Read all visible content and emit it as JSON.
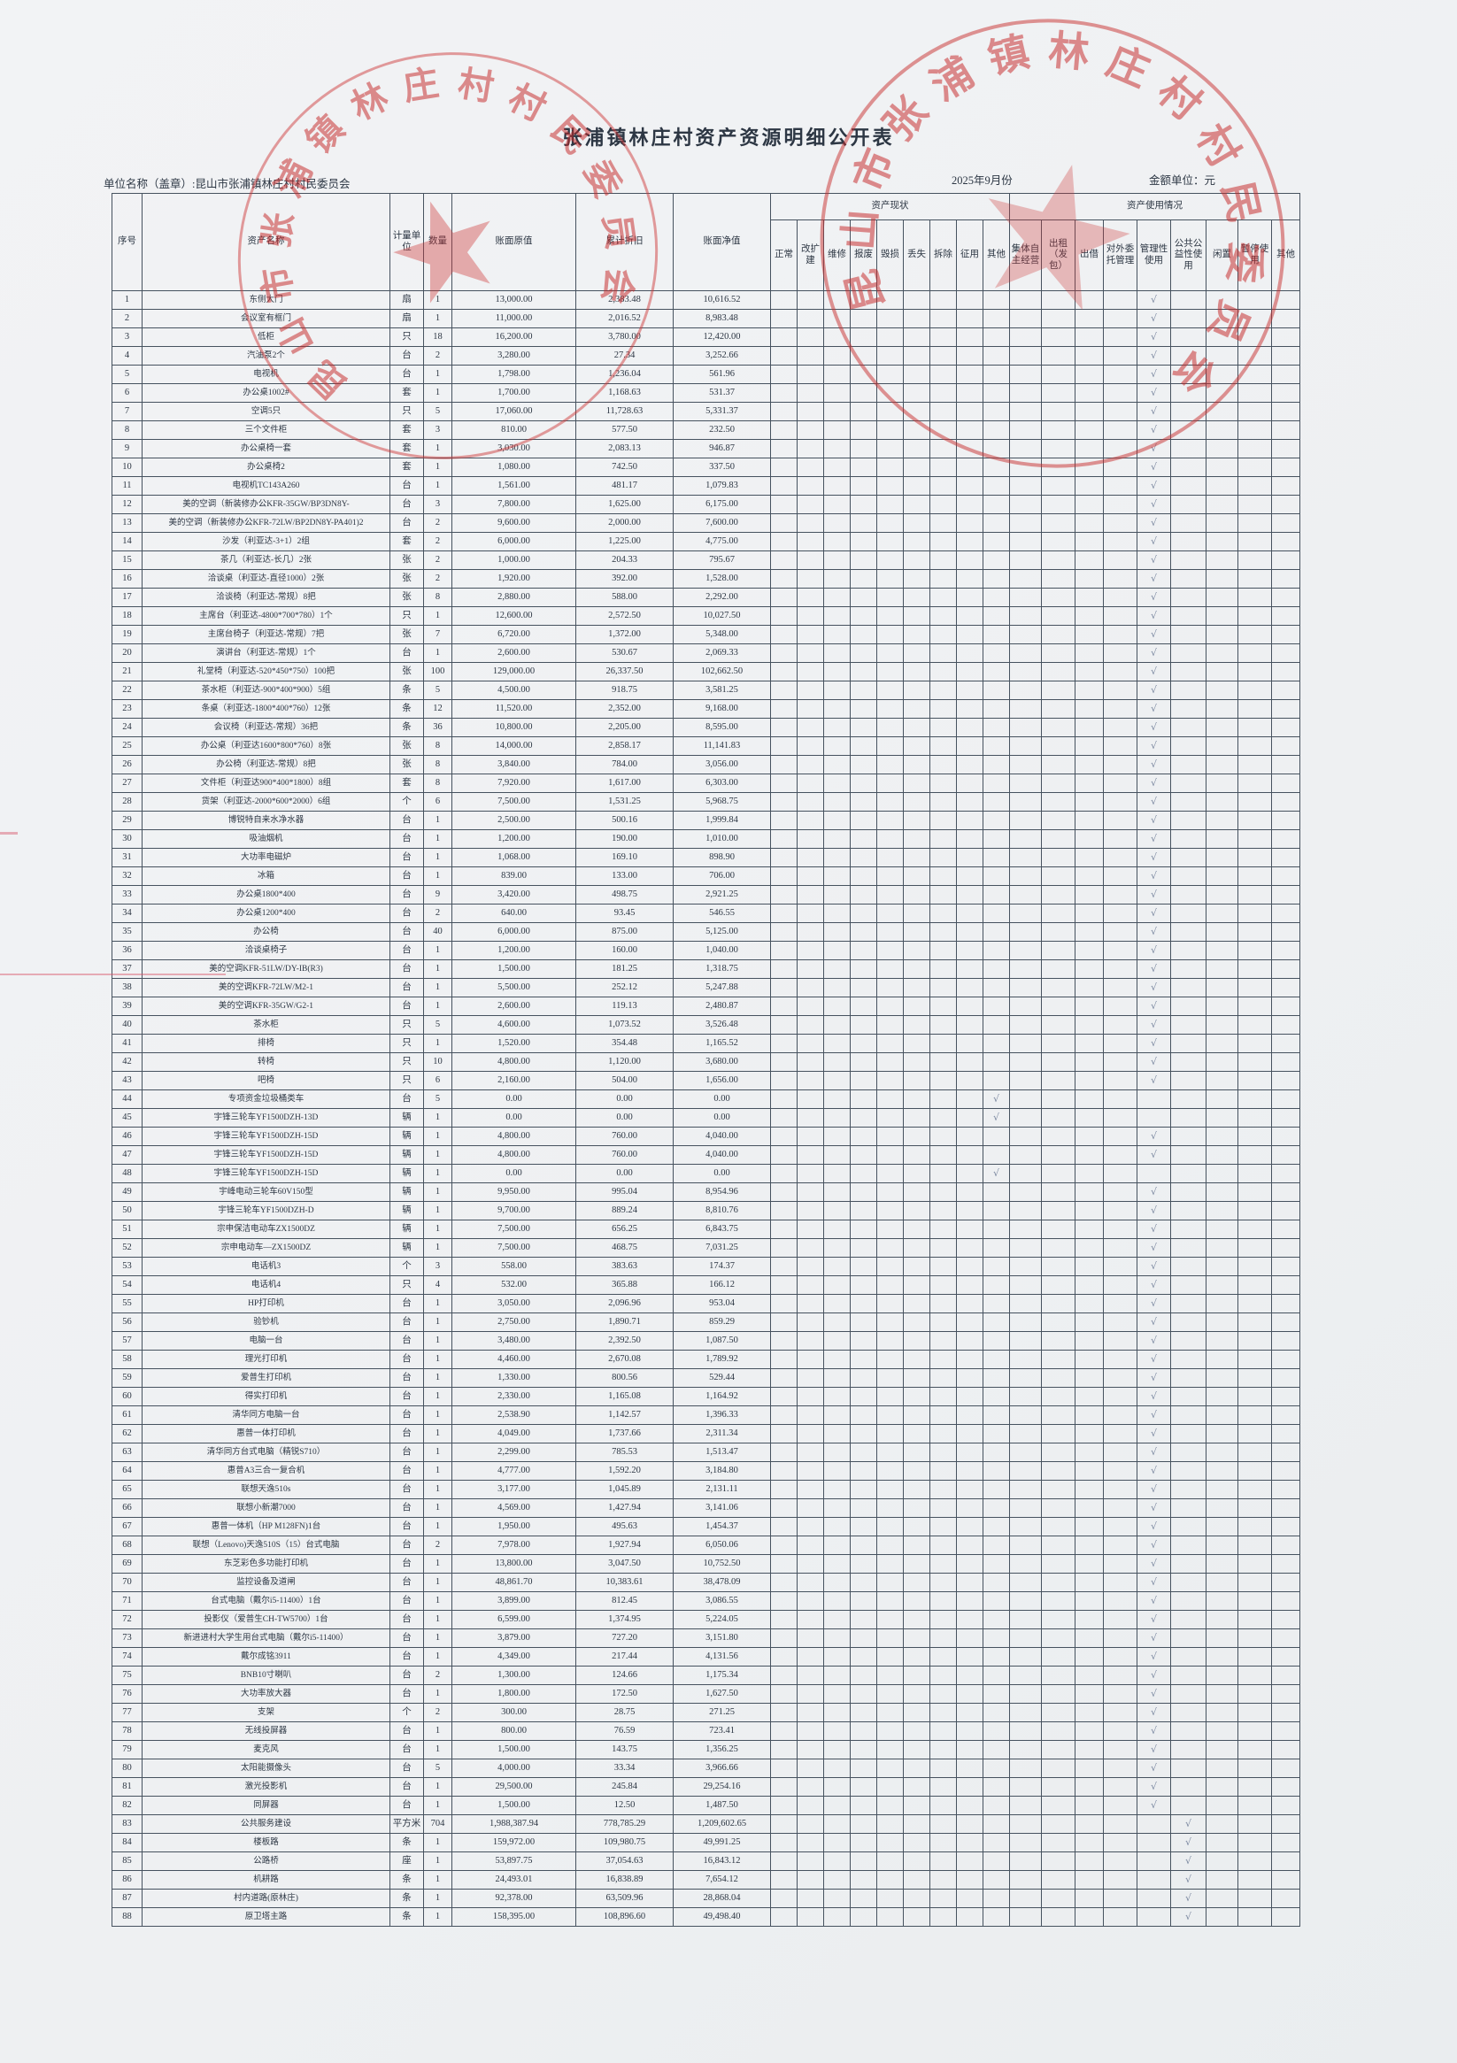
{
  "page": {
    "title": "张浦镇林庄村资产资源明细公开表",
    "unit_label": "单位名称（盖章）:昆山市张浦镇林庄村村民委员会",
    "date": "2025年9月份",
    "amount_unit": "金额单位：元",
    "stamp_text": "昆山市张浦镇林庄村村民委员会",
    "check_mark": "√"
  },
  "table": {
    "headers": {
      "seq": "序号",
      "name": "资产名称",
      "unit": "计量单位",
      "qty": "数量",
      "orig": "账面原值",
      "depr": "累计折旧",
      "net": "账面净值",
      "status_group": "资产现状",
      "usage_group": "资产使用情况",
      "status_cols": [
        "正常",
        "改扩建",
        "维修",
        "报废",
        "毁损",
        "丢失",
        "拆除",
        "征用",
        "其他"
      ],
      "usage_cols": [
        "集体自主经营",
        "出租（发包）",
        "出借",
        "对外委托管理",
        "管理性使用",
        "公共公益性使用",
        "闲置",
        "暂停使用",
        "其他"
      ]
    },
    "rows": [
      [
        1,
        "东侧大门",
        "扇",
        "1",
        "13,000.00",
        "2,383.48",
        "10,616.52",
        "m"
      ],
      [
        2,
        "会议室有框门",
        "扇",
        "1",
        "11,000.00",
        "2,016.52",
        "8,983.48",
        "m"
      ],
      [
        3,
        "低柜",
        "只",
        "18",
        "16,200.00",
        "3,780.00",
        "12,420.00",
        "m"
      ],
      [
        4,
        "汽油泵2个",
        "台",
        "2",
        "3,280.00",
        "27.34",
        "3,252.66",
        "m"
      ],
      [
        5,
        "电视机",
        "台",
        "1",
        "1,798.00",
        "1,236.04",
        "561.96",
        "m"
      ],
      [
        6,
        "办公桌1002#",
        "套",
        "1",
        "1,700.00",
        "1,168.63",
        "531.37",
        "m"
      ],
      [
        7,
        "空调5只",
        "只",
        "5",
        "17,060.00",
        "11,728.63",
        "5,331.37",
        "m"
      ],
      [
        8,
        "三个文件柜",
        "套",
        "3",
        "810.00",
        "577.50",
        "232.50",
        "m"
      ],
      [
        9,
        "办公桌椅一套",
        "套",
        "1",
        "3,030.00",
        "2,083.13",
        "946.87",
        "m"
      ],
      [
        10,
        "办公桌椅2",
        "套",
        "1",
        "1,080.00",
        "742.50",
        "337.50",
        "m"
      ],
      [
        11,
        "电视机TC143A260",
        "台",
        "1",
        "1,561.00",
        "481.17",
        "1,079.83",
        "m"
      ],
      [
        12,
        "美的空调（新装修办公KFR-35GW/BP3DN8Y-",
        "台",
        "3",
        "7,800.00",
        "1,625.00",
        "6,175.00",
        "m"
      ],
      [
        13,
        "美的空调（新装修办公KFR-72LW/BP2DN8Y-PA401)2",
        "台",
        "2",
        "9,600.00",
        "2,000.00",
        "7,600.00",
        "m"
      ],
      [
        14,
        "沙发（利亚达-3+1）2组",
        "套",
        "2",
        "6,000.00",
        "1,225.00",
        "4,775.00",
        "m"
      ],
      [
        15,
        "茶几（利亚达-长几）2张",
        "张",
        "2",
        "1,000.00",
        "204.33",
        "795.67",
        "m"
      ],
      [
        16,
        "洽谈桌（利亚达-直径1000）2张",
        "张",
        "2",
        "1,920.00",
        "392.00",
        "1,528.00",
        "m"
      ],
      [
        17,
        "洽谈椅（利亚达-常规）8把",
        "张",
        "8",
        "2,880.00",
        "588.00",
        "2,292.00",
        "m"
      ],
      [
        18,
        "主席台（利亚达-4800*700*780）1个",
        "只",
        "1",
        "12,600.00",
        "2,572.50",
        "10,027.50",
        "m"
      ],
      [
        19,
        "主席台椅子（利亚达-常规）7把",
        "张",
        "7",
        "6,720.00",
        "1,372.00",
        "5,348.00",
        "m"
      ],
      [
        20,
        "演讲台（利亚达-常规）1个",
        "台",
        "1",
        "2,600.00",
        "530.67",
        "2,069.33",
        "m"
      ],
      [
        21,
        "礼堂椅（利亚达-520*450*750）100把",
        "张",
        "100",
        "129,000.00",
        "26,337.50",
        "102,662.50",
        "m"
      ],
      [
        22,
        "茶水柜（利亚达-900*400*900）5组",
        "条",
        "5",
        "4,500.00",
        "918.75",
        "3,581.25",
        "m"
      ],
      [
        23,
        "条桌（利亚达-1800*400*760）12张",
        "条",
        "12",
        "11,520.00",
        "2,352.00",
        "9,168.00",
        "m"
      ],
      [
        24,
        "会议椅（利亚达-常规）36把",
        "条",
        "36",
        "10,800.00",
        "2,205.00",
        "8,595.00",
        "m"
      ],
      [
        25,
        "办公桌（利亚达1600*800*760）8张",
        "张",
        "8",
        "14,000.00",
        "2,858.17",
        "11,141.83",
        "m"
      ],
      [
        26,
        "办公椅（利亚达-常规）8把",
        "张",
        "8",
        "3,840.00",
        "784.00",
        "3,056.00",
        "m"
      ],
      [
        27,
        "文件柜（利亚达900*400*1800）8组",
        "套",
        "8",
        "7,920.00",
        "1,617.00",
        "6,303.00",
        "m"
      ],
      [
        28,
        "货架（利亚达-2000*600*2000）6组",
        "个",
        "6",
        "7,500.00",
        "1,531.25",
        "5,968.75",
        "m"
      ],
      [
        29,
        "博锐特自来水净水器",
        "台",
        "1",
        "2,500.00",
        "500.16",
        "1,999.84",
        "m"
      ],
      [
        30,
        "吸油烟机",
        "台",
        "1",
        "1,200.00",
        "190.00",
        "1,010.00",
        "m"
      ],
      [
        31,
        "大功率电磁炉",
        "台",
        "1",
        "1,068.00",
        "169.10",
        "898.90",
        "m"
      ],
      [
        32,
        "冰箱",
        "台",
        "1",
        "839.00",
        "133.00",
        "706.00",
        "m"
      ],
      [
        33,
        "办公桌1800*400",
        "台",
        "9",
        "3,420.00",
        "498.75",
        "2,921.25",
        "m"
      ],
      [
        34,
        "办公桌1200*400",
        "台",
        "2",
        "640.00",
        "93.45",
        "546.55",
        "m"
      ],
      [
        35,
        "办公椅",
        "台",
        "40",
        "6,000.00",
        "875.00",
        "5,125.00",
        "m"
      ],
      [
        36,
        "洽谈桌椅子",
        "台",
        "1",
        "1,200.00",
        "160.00",
        "1,040.00",
        "m"
      ],
      [
        37,
        "美的空调KFR-51LW/DY-IB(R3)",
        "台",
        "1",
        "1,500.00",
        "181.25",
        "1,318.75",
        "m"
      ],
      [
        38,
        "美的空调KFR-72LW/M2-1",
        "台",
        "1",
        "5,500.00",
        "252.12",
        "5,247.88",
        "m"
      ],
      [
        39,
        "美的空调KFR-35GW/G2-1",
        "台",
        "1",
        "2,600.00",
        "119.13",
        "2,480.87",
        "m"
      ],
      [
        40,
        "茶水柜",
        "只",
        "5",
        "4,600.00",
        "1,073.52",
        "3,526.48",
        "m"
      ],
      [
        41,
        "排椅",
        "只",
        "1",
        "1,520.00",
        "354.48",
        "1,165.52",
        "m"
      ],
      [
        42,
        "转椅",
        "只",
        "10",
        "4,800.00",
        "1,120.00",
        "3,680.00",
        "m"
      ],
      [
        43,
        "吧椅",
        "只",
        "6",
        "2,160.00",
        "504.00",
        "1,656.00",
        "m"
      ],
      [
        44,
        "专项资金垃圾桶类车",
        "台",
        "5",
        "0.00",
        "0.00",
        "0.00",
        "o"
      ],
      [
        45,
        "宇锋三轮车YF1500DZH-13D",
        "辆",
        "1",
        "0.00",
        "0.00",
        "0.00",
        "o"
      ],
      [
        46,
        "宇锋三轮车YF1500DZH-15D",
        "辆",
        "1",
        "4,800.00",
        "760.00",
        "4,040.00",
        "m"
      ],
      [
        47,
        "宇锋三轮车YF1500DZH-15D",
        "辆",
        "1",
        "4,800.00",
        "760.00",
        "4,040.00",
        "m"
      ],
      [
        48,
        "宇锋三轮车YF1500DZH-15D",
        "辆",
        "1",
        "0.00",
        "0.00",
        "0.00",
        "o"
      ],
      [
        49,
        "宇峰电动三轮车60V150型",
        "辆",
        "1",
        "9,950.00",
        "995.04",
        "8,954.96",
        "m"
      ],
      [
        50,
        "宇锋三轮车YF1500DZH-D",
        "辆",
        "1",
        "9,700.00",
        "889.24",
        "8,810.76",
        "m"
      ],
      [
        51,
        "宗申保洁电动车ZX1500DZ",
        "辆",
        "1",
        "7,500.00",
        "656.25",
        "6,843.75",
        "m"
      ],
      [
        52,
        "宗申电动车—ZX1500DZ",
        "辆",
        "1",
        "7,500.00",
        "468.75",
        "7,031.25",
        "m"
      ],
      [
        53,
        "电话机3",
        "个",
        "3",
        "558.00",
        "383.63",
        "174.37",
        "m"
      ],
      [
        54,
        "电话机4",
        "只",
        "4",
        "532.00",
        "365.88",
        "166.12",
        "m"
      ],
      [
        55,
        "HP打印机",
        "台",
        "1",
        "3,050.00",
        "2,096.96",
        "953.04",
        "m"
      ],
      [
        56,
        "验钞机",
        "台",
        "1",
        "2,750.00",
        "1,890.71",
        "859.29",
        "m"
      ],
      [
        57,
        "电脑一台",
        "台",
        "1",
        "3,480.00",
        "2,392.50",
        "1,087.50",
        "m"
      ],
      [
        58,
        "理光打印机",
        "台",
        "1",
        "4,460.00",
        "2,670.08",
        "1,789.92",
        "m"
      ],
      [
        59,
        "爱普生打印机",
        "台",
        "1",
        "1,330.00",
        "800.56",
        "529.44",
        "m"
      ],
      [
        60,
        "得实打印机",
        "台",
        "1",
        "2,330.00",
        "1,165.08",
        "1,164.92",
        "m"
      ],
      [
        61,
        "清华同方电脑一台",
        "台",
        "1",
        "2,538.90",
        "1,142.57",
        "1,396.33",
        "m"
      ],
      [
        62,
        "惠普一体打印机",
        "台",
        "1",
        "4,049.00",
        "1,737.66",
        "2,311.34",
        "m"
      ],
      [
        63,
        "清华同方台式电脑（精锐S710）",
        "台",
        "1",
        "2,299.00",
        "785.53",
        "1,513.47",
        "m"
      ],
      [
        64,
        "惠普A3三合一复合机",
        "台",
        "1",
        "4,777.00",
        "1,592.20",
        "3,184.80",
        "m"
      ],
      [
        65,
        "联想天逸510s",
        "台",
        "1",
        "3,177.00",
        "1,045.89",
        "2,131.11",
        "m"
      ],
      [
        66,
        "联想小新潮7000",
        "台",
        "1",
        "4,569.00",
        "1,427.94",
        "3,141.06",
        "m"
      ],
      [
        67,
        "惠普一体机（HP M128FN)1台",
        "台",
        "1",
        "1,950.00",
        "495.63",
        "1,454.37",
        "m"
      ],
      [
        68,
        "联想（Lenovo)天逸510S（15）台式电脑",
        "台",
        "2",
        "7,978.00",
        "1,927.94",
        "6,050.06",
        "m"
      ],
      [
        69,
        "东芝彩色多功能打印机",
        "台",
        "1",
        "13,800.00",
        "3,047.50",
        "10,752.50",
        "m"
      ],
      [
        70,
        "监控设备及道闸",
        "台",
        "1",
        "48,861.70",
        "10,383.61",
        "38,478.09",
        "m"
      ],
      [
        71,
        "台式电脑（戴尔i5-11400）1台",
        "台",
        "1",
        "3,899.00",
        "812.45",
        "3,086.55",
        "m"
      ],
      [
        72,
        "投影仪（爱普生CH-TW5700）1台",
        "台",
        "1",
        "6,599.00",
        "1,374.95",
        "5,224.05",
        "m"
      ],
      [
        73,
        "新进进村大学生用台式电脑（戴尔i5-11400）",
        "台",
        "1",
        "3,879.00",
        "727.20",
        "3,151.80",
        "m"
      ],
      [
        74,
        "戴尔成铭3911",
        "台",
        "1",
        "4,349.00",
        "217.44",
        "4,131.56",
        "m"
      ],
      [
        75,
        "BNB10寸喇叭",
        "台",
        "2",
        "1,300.00",
        "124.66",
        "1,175.34",
        "m"
      ],
      [
        76,
        "大功率放大器",
        "台",
        "1",
        "1,800.00",
        "172.50",
        "1,627.50",
        "m"
      ],
      [
        77,
        "支架",
        "个",
        "2",
        "300.00",
        "28.75",
        "271.25",
        "m"
      ],
      [
        78,
        "无线投屏器",
        "台",
        "1",
        "800.00",
        "76.59",
        "723.41",
        "m"
      ],
      [
        79,
        "麦克风",
        "台",
        "1",
        "1,500.00",
        "143.75",
        "1,356.25",
        "m"
      ],
      [
        80,
        "太阳能摄像头",
        "台",
        "5",
        "4,000.00",
        "33.34",
        "3,966.66",
        "m"
      ],
      [
        81,
        "激光投影机",
        "台",
        "1",
        "29,500.00",
        "245.84",
        "29,254.16",
        "m"
      ],
      [
        82,
        "同屏器",
        "台",
        "1",
        "1,500.00",
        "12.50",
        "1,487.50",
        "m"
      ],
      [
        83,
        "公共服务建设",
        "平方米",
        "704",
        "1,988,387.94",
        "778,785.29",
        "1,209,602.65",
        "p"
      ],
      [
        84,
        "楼板路",
        "条",
        "1",
        "159,972.00",
        "109,980.75",
        "49,991.25",
        "p"
      ],
      [
        85,
        "公路桥",
        "座",
        "1",
        "53,897.75",
        "37,054.63",
        "16,843.12",
        "p"
      ],
      [
        86,
        "机耕路",
        "条",
        "1",
        "24,493.01",
        "16,838.89",
        "7,654.12",
        "p"
      ],
      [
        87,
        "村内道路(原林庄)",
        "条",
        "1",
        "92,378.00",
        "63,509.96",
        "28,868.04",
        "p"
      ],
      [
        88,
        "原卫塔主路",
        "条",
        "1",
        "158,395.00",
        "108,896.60",
        "49,498.40",
        "p"
      ]
    ]
  }
}
